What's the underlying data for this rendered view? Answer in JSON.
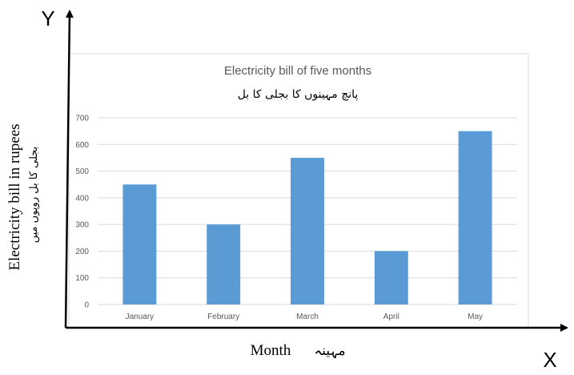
{
  "axis_letters": {
    "x": "X",
    "y": "Y"
  },
  "outer_labels": {
    "x_english": "Month",
    "x_urdu": "مہینہ",
    "y_english": "Electricity bill in rupees",
    "y_urdu": "بجلی کا بل روپوں میں"
  },
  "colors": {
    "bar": "#5b9bd5",
    "grid": "#d9d9d9",
    "text": "#595959",
    "frame": "#d9d9d9"
  },
  "chart_data": {
    "type": "bar",
    "title": "Electricity bill of five months",
    "subtitle": "پانچ مہینوں کا بجلی کا بل",
    "categories": [
      "January",
      "February",
      "March",
      "April",
      "May"
    ],
    "values": [
      450,
      300,
      550,
      200,
      650
    ],
    "ylim": [
      0,
      700
    ],
    "yticks": [
      0,
      100,
      200,
      300,
      400,
      500,
      600,
      700
    ],
    "grid": true,
    "legend": "none"
  }
}
